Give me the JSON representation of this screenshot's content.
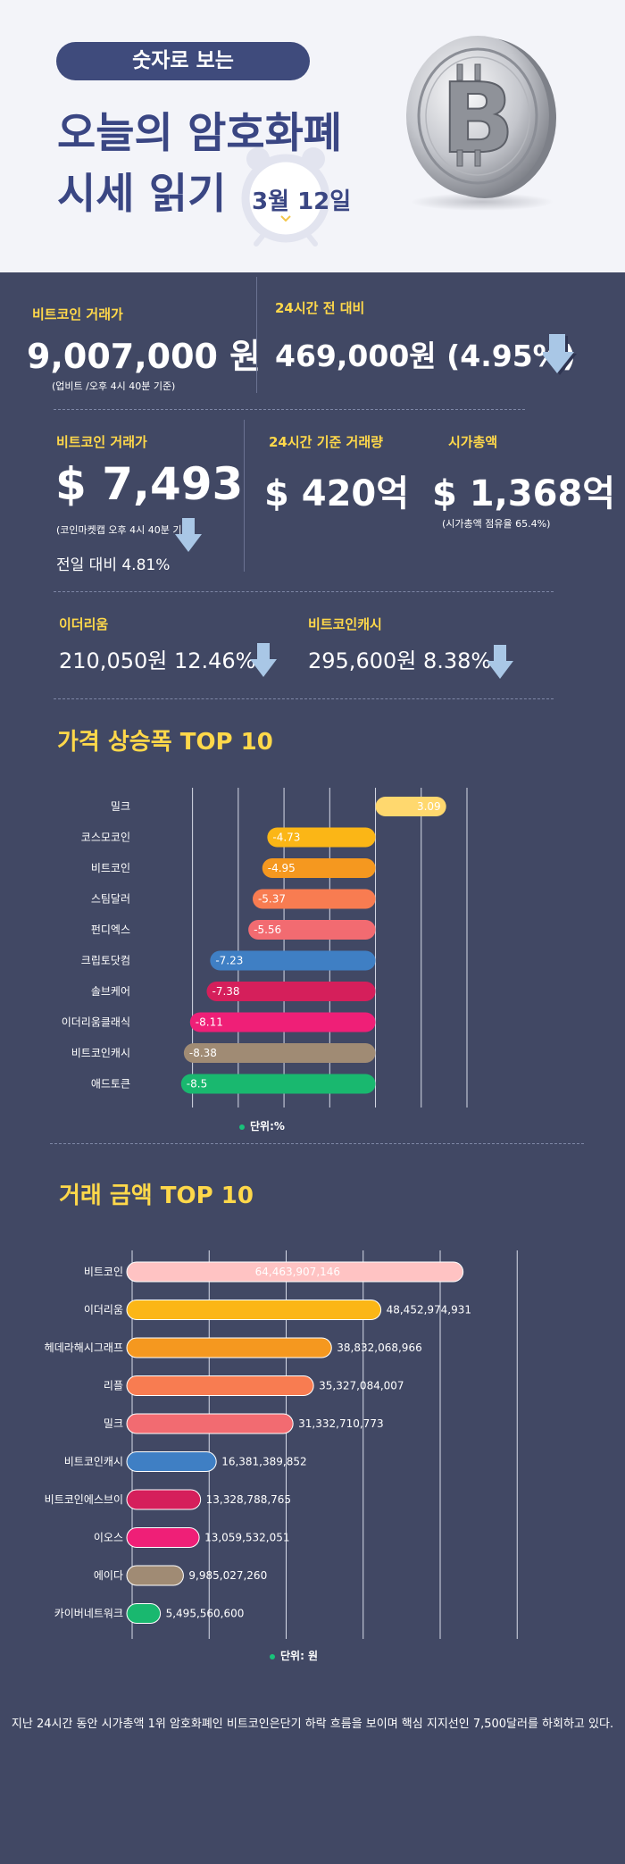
{
  "header": {
    "pill": "숫자로 보는",
    "title_line1": "오늘의 암호화폐",
    "title_line2": "시세 읽기",
    "date": "3월 12일"
  },
  "upbit": {
    "label": "비트코인 거래가",
    "value": "9,007,000 원",
    "note": "(업비트 /오후 4시 40분 기준)"
  },
  "change24": {
    "label": "24시간 전 대비",
    "value": "469,000원 (4.95%)"
  },
  "usd": {
    "label": "비트코인 거래가",
    "value": "$ 7,493",
    "note": "(코인마켓캡 오후 4시 40분 기준)",
    "prev": "전일 대비 4.81%"
  },
  "volume": {
    "label": "24시간 기준 거래량",
    "value": "$ 420억"
  },
  "marketcap": {
    "label": "시가총액",
    "value": "$ 1,368억",
    "note": "(시가총액 점유율 65.4%)"
  },
  "ethereum": {
    "label": "이더리움",
    "value": "210,050원  12.46%"
  },
  "bitcoincash": {
    "label": "비트코인캐시",
    "value": "295,600원  8.38%"
  },
  "colors": {
    "accent_yellow": "#ffd84a",
    "arrow": "#a9c7e6",
    "panel_bg": "#414864",
    "header_bg": "#f3f4f9",
    "title_color": "#3a4683"
  },
  "chart_data": [
    {
      "type": "bar",
      "orientation": "horizontal",
      "title": "가격 상승폭 TOP 10",
      "categories": [
        "밀크",
        "코스모코인",
        "비트코인",
        "스팀달러",
        "펀디엑스",
        "크립토닷컴",
        "솔브케어",
        "이더리움클래식",
        "비트코인캐시",
        "애드토큰"
      ],
      "values": [
        3.09,
        -4.73,
        -4.95,
        -5.37,
        -5.56,
        -7.23,
        -7.38,
        -8.11,
        -8.38,
        -8.5
      ],
      "labels": [
        "3.09",
        "-4.73",
        "-4.95",
        "-5.37",
        "-5.56",
        "-7.23",
        "-7.38",
        "-8.11",
        "-8.38",
        "-8.5"
      ],
      "colors": [
        "#ffd86e",
        "#fbb616",
        "#f5981f",
        "#f87c51",
        "#f26b71",
        "#3f7fc4",
        "#d51f5b",
        "#ef1f77",
        "#a08b74",
        "#19b86f"
      ],
      "unit": "단위:%",
      "xlim": [
        -9,
        4
      ],
      "grid": true
    },
    {
      "type": "bar",
      "orientation": "horizontal",
      "title": "거래 금액 TOP 10",
      "categories": [
        "비트코인",
        "이더리움",
        "헤데라해시그래프",
        "리플",
        "밀크",
        "비트코인캐시",
        "비트코인에스브이",
        "이오스",
        "에이다",
        "카이버네트워크"
      ],
      "values": [
        64463907146,
        48452974931,
        38832068966,
        35327084007,
        31332710773,
        16381389852,
        13328788765,
        13059532051,
        9985027260,
        5495560600
      ],
      "labels": [
        "64,463,907,146",
        "48,452,974,931",
        "38,832,068,966",
        "35,327,084,007",
        "31,332,710,773",
        "16,381,389,852",
        "13,328,788,765",
        "13,059,532,051",
        "9,985,027,260",
        "5,495,560,600"
      ],
      "colors": [
        "#ffc3c3",
        "#fbb616",
        "#f5981f",
        "#f87c51",
        "#f26b71",
        "#3f7fc4",
        "#d51f5b",
        "#ef1f77",
        "#a08b74",
        "#19b86f"
      ],
      "unit": "단위: 원",
      "xlim": [
        0,
        80000000000
      ],
      "grid": true
    }
  ],
  "footer": "지난 24시간 동안 시가총액 1위 암호화폐인 비트코인은단기 하락 흐름을 보이며 핵심 지지선인 7,500달러를 하회하고 있다."
}
